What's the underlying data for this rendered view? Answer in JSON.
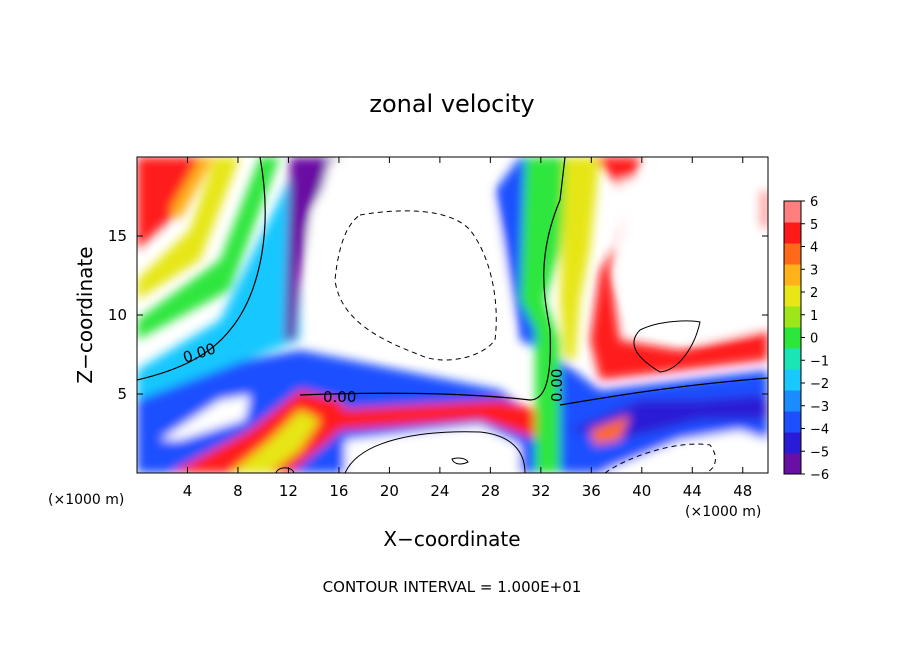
{
  "chart_data": {
    "type": "heatmap",
    "title": "zonal velocity",
    "xlabel": "X−coordinate",
    "ylabel": "Z−coordinate",
    "x_unit_left": "(×1000 m)",
    "x_unit_right": "(×1000 m)",
    "x_range": [
      0,
      50
    ],
    "y_range": [
      0,
      20
    ],
    "x_ticks": [
      4,
      8,
      12,
      16,
      20,
      24,
      28,
      32,
      36,
      40,
      44,
      48
    ],
    "x_tick_labels": [
      "4",
      "8",
      "12",
      "16",
      "20",
      "24",
      "28",
      "32",
      "36",
      "40",
      "44",
      "48"
    ],
    "y_ticks": [
      5,
      10,
      15
    ],
    "y_tick_labels": [
      "5",
      "10",
      "15"
    ],
    "colorbar": {
      "range": [
        -6,
        6
      ],
      "tick_labels": [
        "6",
        "5",
        "4",
        "3",
        "2",
        "1",
        "0",
        "−1",
        "−2",
        "−3",
        "−4",
        "−5",
        "−6"
      ],
      "colors": [
        "#6a0fa3",
        "#2a1bd6",
        "#1e4fff",
        "#1a8cff",
        "#19c8ff",
        "#19e6b4",
        "#2de63c",
        "#9ee619",
        "#e6e619",
        "#ffb21a",
        "#ff6a1a",
        "#ff1a1a",
        "#ff7f7f"
      ]
    },
    "zero_contour_label": "0.00",
    "contour_interval_text": "CONTOUR INTERVAL = 1.000E+01"
  }
}
